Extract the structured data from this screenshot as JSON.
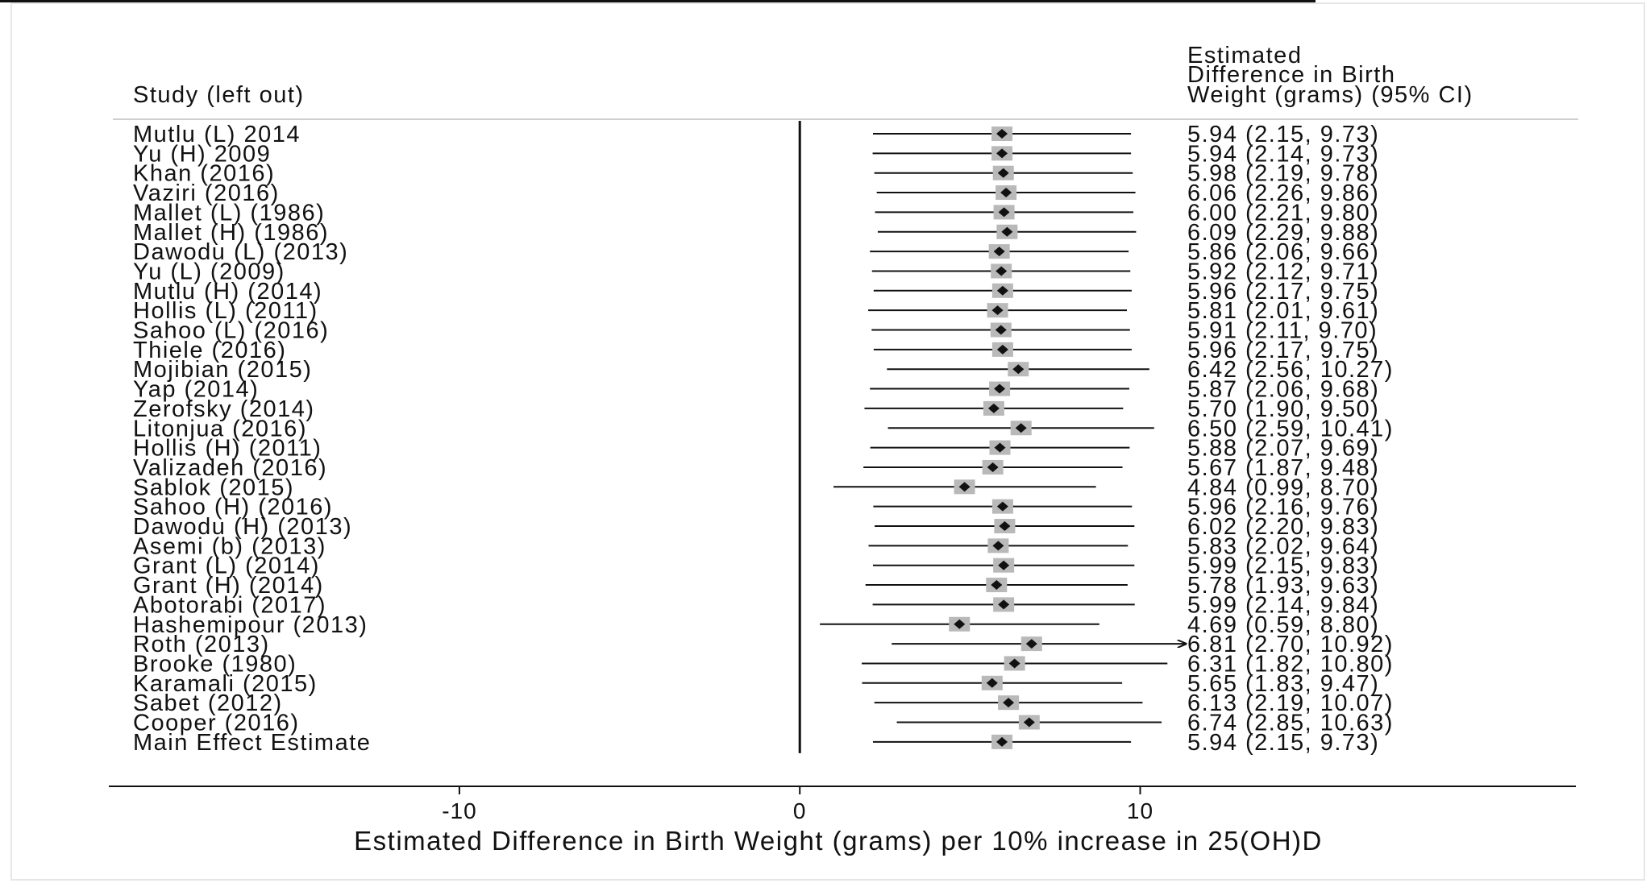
{
  "chart_data": {
    "type": "forest",
    "left_header": "Study (left out)",
    "right_header": [
      "Estimated",
      "Difference in Birth",
      "Weight (grams) (95% CI)"
    ],
    "xlabel": "Estimated Difference in Birth Weight (grams) per 10% increase in 25(OH)D",
    "xticks": [
      -10,
      0,
      10
    ],
    "xlim": [
      -20.3,
      22.8
    ],
    "reference_line": 0,
    "colors": {
      "line": "#111111",
      "square": "#b9b9b9",
      "diamond": "#111111",
      "rule": "#cfcfcf",
      "frame": "#e6e6e6"
    },
    "rows": [
      {
        "study": "Mutlu (L) 2014",
        "est": 5.94,
        "lo": 2.15,
        "hi": 9.73,
        "text": "5.94 (2.15, 9.73)"
      },
      {
        "study": "Yu (H) 2009",
        "est": 5.94,
        "lo": 2.14,
        "hi": 9.73,
        "text": "5.94 (2.14, 9.73)"
      },
      {
        "study": "Khan (2016)",
        "est": 5.98,
        "lo": 2.19,
        "hi": 9.78,
        "text": "5.98 (2.19, 9.78)"
      },
      {
        "study": "Vaziri (2016)",
        "est": 6.06,
        "lo": 2.26,
        "hi": 9.86,
        "text": "6.06 (2.26, 9.86)"
      },
      {
        "study": "Mallet (L) (1986)",
        "est": 6.0,
        "lo": 2.21,
        "hi": 9.8,
        "text": "6.00 (2.21, 9.80)"
      },
      {
        "study": "Mallet (H) (1986)",
        "est": 6.09,
        "lo": 2.29,
        "hi": 9.88,
        "text": "6.09 (2.29, 9.88)"
      },
      {
        "study": "Dawodu (L) (2013)",
        "est": 5.86,
        "lo": 2.06,
        "hi": 9.66,
        "text": "5.86 (2.06, 9.66)"
      },
      {
        "study": "Yu (L) (2009)",
        "est": 5.92,
        "lo": 2.12,
        "hi": 9.71,
        "text": "5.92 (2.12, 9.71)"
      },
      {
        "study": "Mutlu (H) (2014)",
        "est": 5.96,
        "lo": 2.17,
        "hi": 9.75,
        "text": "5.96 (2.17, 9.75)"
      },
      {
        "study": "Hollis (L) (2011)",
        "est": 5.81,
        "lo": 2.01,
        "hi": 9.61,
        "text": "5.81 (2.01, 9.61)"
      },
      {
        "study": "Sahoo (L) (2016)",
        "est": 5.91,
        "lo": 2.11,
        "hi": 9.7,
        "text": "5.91 (2.11, 9.70)"
      },
      {
        "study": "Thiele (2016)",
        "est": 5.96,
        "lo": 2.17,
        "hi": 9.75,
        "text": "5.96 (2.17, 9.75)"
      },
      {
        "study": "Mojibian (2015)",
        "est": 6.42,
        "lo": 2.56,
        "hi": 10.27,
        "text": "6.42 (2.56, 10.27)"
      },
      {
        "study": "Yap (2014)",
        "est": 5.87,
        "lo": 2.06,
        "hi": 9.68,
        "text": "5.87 (2.06, 9.68)"
      },
      {
        "study": "Zerofsky (2014)",
        "est": 5.7,
        "lo": 1.9,
        "hi": 9.5,
        "text": "5.70 (1.90, 9.50)"
      },
      {
        "study": "Litonjua (2016)",
        "est": 6.5,
        "lo": 2.59,
        "hi": 10.41,
        "text": "6.50 (2.59, 10.41)"
      },
      {
        "study": "Hollis (H) (2011)",
        "est": 5.88,
        "lo": 2.07,
        "hi": 9.69,
        "text": "5.88 (2.07, 9.69)"
      },
      {
        "study": "Valizadeh (2016)",
        "est": 5.67,
        "lo": 1.87,
        "hi": 9.48,
        "text": "5.67 (1.87, 9.48)"
      },
      {
        "study": "Sablok (2015)",
        "est": 4.84,
        "lo": 0.99,
        "hi": 8.7,
        "text": "4.84 (0.99, 8.70)"
      },
      {
        "study": "Sahoo (H) (2016)",
        "est": 5.96,
        "lo": 2.16,
        "hi": 9.76,
        "text": "5.96 (2.16, 9.76)"
      },
      {
        "study": "Dawodu (H) (2013)",
        "est": 6.02,
        "lo": 2.2,
        "hi": 9.83,
        "text": "6.02 (2.20, 9.83)"
      },
      {
        "study": "Asemi (b) (2013)",
        "est": 5.83,
        "lo": 2.02,
        "hi": 9.64,
        "text": "5.83 (2.02, 9.64)"
      },
      {
        "study": "Grant (L) (2014)",
        "est": 5.99,
        "lo": 2.15,
        "hi": 9.83,
        "text": "5.99 (2.15, 9.83)"
      },
      {
        "study": "Grant (H) (2014)",
        "est": 5.78,
        "lo": 1.93,
        "hi": 9.63,
        "text": "5.78 (1.93, 9.63)"
      },
      {
        "study": "Abotorabi (2017)",
        "est": 5.99,
        "lo": 2.14,
        "hi": 9.84,
        "text": "5.99 (2.14, 9.84)"
      },
      {
        "study": "Hashemipour (2013)",
        "est": 4.69,
        "lo": 0.59,
        "hi": 8.8,
        "text": "4.69 (0.59, 8.80)"
      },
      {
        "study": "Roth (2013)",
        "est": 6.81,
        "lo": 2.7,
        "hi": 10.92,
        "text": "6.81 (2.70, 10.92)",
        "arrow": true
      },
      {
        "study": "Brooke (1980)",
        "est": 6.31,
        "lo": 1.82,
        "hi": 10.8,
        "text": "6.31 (1.82, 10.80)"
      },
      {
        "study": "Karamali (2015)",
        "est": 5.65,
        "lo": 1.83,
        "hi": 9.47,
        "text": "5.65 (1.83, 9.47)"
      },
      {
        "study": "Sabet (2012)",
        "est": 6.13,
        "lo": 2.19,
        "hi": 10.07,
        "text": "6.13 (2.19, 10.07)"
      },
      {
        "study": "Cooper (2016)",
        "est": 6.74,
        "lo": 2.85,
        "hi": 10.63,
        "text": "6.74 (2.85, 10.63)"
      },
      {
        "study": "Main Effect Estimate",
        "est": 5.94,
        "lo": 2.15,
        "hi": 9.73,
        "text": "5.94 (2.15, 9.73)"
      }
    ]
  }
}
